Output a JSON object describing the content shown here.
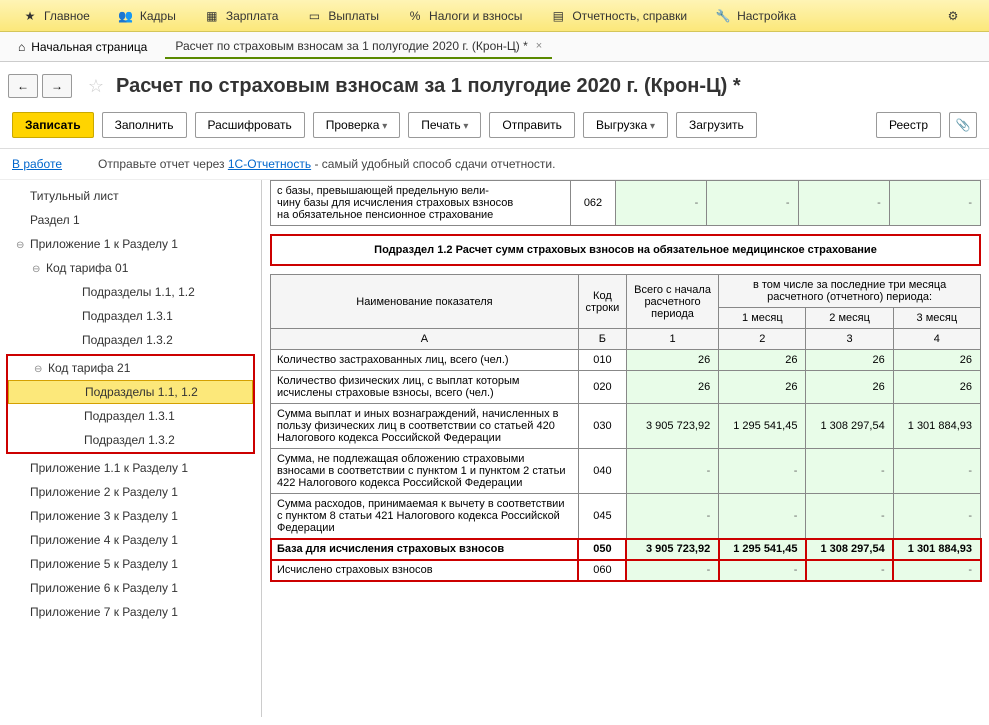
{
  "topmenu": {
    "items": [
      {
        "icon": "star",
        "label": "Главное"
      },
      {
        "icon": "people",
        "label": "Кадры"
      },
      {
        "icon": "calc",
        "label": "Зарплата"
      },
      {
        "icon": "card",
        "label": "Выплаты"
      },
      {
        "icon": "percent",
        "label": "Налоги и взносы"
      },
      {
        "icon": "doc",
        "label": "Отчетность, справки"
      },
      {
        "icon": "wrench",
        "label": "Настройка"
      }
    ]
  },
  "tabs": {
    "home": "Начальная страница",
    "doc": "Расчет по страховым взносам за 1 полугодие 2020 г. (Крон-Ц) *"
  },
  "page_title": "Расчет по страховым взносам за 1 полугодие 2020 г. (Крон-Ц) *",
  "toolbar": {
    "save": "Записать",
    "fill": "Заполнить",
    "decode": "Расшифровать",
    "check": "Проверка",
    "print": "Печать",
    "send": "Отправить",
    "export": "Выгрузка",
    "load": "Загрузить",
    "registry": "Реестр"
  },
  "infobar": {
    "status": "В работе",
    "text1": "Отправьте отчет через ",
    "link": "1С-Отчетность",
    "text2": " - самый удобный способ сдачи отчетности."
  },
  "tree": {
    "items": [
      {
        "label": "Титульный лист",
        "level": 0
      },
      {
        "label": "Раздел 1",
        "level": 0
      },
      {
        "label": "Приложение 1 к Разделу 1",
        "level": 0,
        "expand": true
      },
      {
        "label": "Код тарифа 01",
        "level": 1,
        "expand": true
      },
      {
        "label": "Подразделы 1.1, 1.2",
        "level": 3
      },
      {
        "label": "Подраздел 1.3.1",
        "level": 3
      },
      {
        "label": "Подраздел 1.3.2",
        "level": 3
      },
      {
        "label": "Код тарифа 21",
        "level": 1,
        "expand": true,
        "box_start": true
      },
      {
        "label": "Подразделы 1.1, 1.2",
        "level": 3,
        "selected": true
      },
      {
        "label": "Подраздел 1.3.1",
        "level": 3
      },
      {
        "label": "Подраздел 1.3.2",
        "level": 3,
        "box_end": true
      },
      {
        "label": "Приложение 1.1 к Разделу 1",
        "level": 0
      },
      {
        "label": "Приложение 2 к Разделу 1",
        "level": 0
      },
      {
        "label": "Приложение 3 к Разделу 1",
        "level": 0
      },
      {
        "label": "Приложение 4 к Разделу 1",
        "level": 0
      },
      {
        "label": "Приложение 5 к Разделу 1",
        "level": 0
      },
      {
        "label": "Приложение 6 к Разделу 1",
        "level": 0
      },
      {
        "label": "Приложение 7 к Разделу 1",
        "level": 0
      }
    ]
  },
  "top_table": {
    "desc": "с базы, превышающей предельную вели-\nчину базы для исчисления страховых взносов\nна обязательное пенсионное страхование",
    "code": "062",
    "cells": [
      "-",
      "-",
      "-",
      "-"
    ]
  },
  "section_title": "Подраздел 1.2 Расчет сумм страховых взносов на обязательное медицинское страхование",
  "main_table": {
    "headers": {
      "name": "Наименование показателя",
      "code": "Код строки",
      "total": "Всего с начала расчетного периода",
      "last3": "в том числе за последние три месяца расчетного (отчетного) периода:",
      "m1": "1 месяц",
      "m2": "2 месяц",
      "m3": "3 месяц",
      "subA": "А",
      "subB": "Б",
      "sub1": "1",
      "sub2": "2",
      "sub3": "3",
      "sub4": "4"
    },
    "rows": [
      {
        "desc": "Количество застрахованных лиц, всего (чел.)",
        "code": "010",
        "v": [
          "26",
          "26",
          "26",
          "26"
        ]
      },
      {
        "desc": "Количество физических лиц, с выплат которым исчислены страховые взносы, всего (чел.)",
        "code": "020",
        "v": [
          "26",
          "26",
          "26",
          "26"
        ]
      },
      {
        "desc": "Сумма выплат и иных вознаграждений, начисленных в пользу физических лиц в соответствии со статьей 420 Налогового кодекса Российской Федерации",
        "code": "030",
        "v": [
          "3 905 723,92",
          "1 295 541,45",
          "1 308 297,54",
          "1 301 884,93"
        ]
      },
      {
        "desc": "Сумма, не подлежащая обложению страховыми взносами в соответствии с пунктом 1 и пунктом 2 статьи 422 Налогового кодекса Российской Федерации",
        "code": "040",
        "v": [
          "-",
          "-",
          "-",
          "-"
        ]
      },
      {
        "desc": "Сумма расходов, принимаемая к вычету в соответствии с пунктом 8 статьи 421 Налогового кодекса Российской Федерации",
        "code": "045",
        "v": [
          "-",
          "-",
          "-",
          "-"
        ]
      },
      {
        "desc": "База для исчисления страховых взносов",
        "code": "050",
        "v": [
          "3 905 723,92",
          "1 295 541,45",
          "1 308 297,54",
          "1 301 884,93"
        ],
        "highlight": true,
        "bold": true
      },
      {
        "desc": "Исчислено страховых взносов",
        "code": "060",
        "v": [
          "-",
          "-",
          "-",
          "-"
        ],
        "highlight": true
      }
    ]
  },
  "colors": {
    "topbar_bg": "#fce87a",
    "primary": "#ffd400",
    "data_bg": "#e8fce8",
    "highlight": "#cc0000"
  }
}
